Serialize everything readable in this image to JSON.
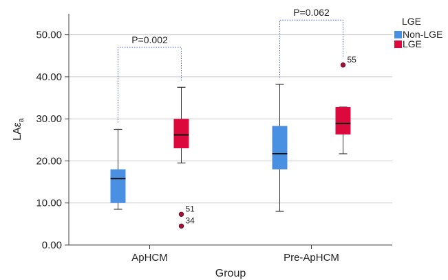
{
  "chart_data": {
    "type": "boxplot",
    "xlabel": "Group",
    "ylabel_main": "LAε",
    "ylabel_sub": "a",
    "ylim": [
      0,
      55
    ],
    "y_ticks": [
      {
        "value": 0,
        "label": "0.00"
      },
      {
        "value": 10,
        "label": "10.00"
      },
      {
        "value": 20,
        "label": "20.00"
      },
      {
        "value": 30,
        "label": "30.00"
      },
      {
        "value": 40,
        "label": "40.00"
      },
      {
        "value": 50,
        "label": "50.00"
      }
    ],
    "grid": true,
    "categories": [
      "ApHCM",
      "Pre-ApHCM"
    ],
    "legend": {
      "title": "LGE",
      "position": "top-right",
      "entries": [
        {
          "name": "Non-LGE",
          "color": "#4a90e2"
        },
        {
          "name": "LGE",
          "color": "#dc0a3c"
        }
      ]
    },
    "boxes": [
      {
        "category": "ApHCM",
        "series": "Non-LGE",
        "min": 8.5,
        "q1": 10.0,
        "median": 15.8,
        "q3": 18.0,
        "max": 27.5,
        "outliers": []
      },
      {
        "category": "ApHCM",
        "series": "LGE",
        "min": 19.5,
        "q1": 23.0,
        "median": 26.2,
        "q3": 30.0,
        "max": 37.5,
        "outliers": [
          {
            "value": 7.3,
            "label": "51"
          },
          {
            "value": 4.5,
            "label": "34"
          }
        ]
      },
      {
        "category": "Pre-ApHCM",
        "series": "Non-LGE",
        "min": 8.0,
        "q1": 18.0,
        "median": 21.7,
        "q3": 28.3,
        "max": 38.2,
        "outliers": []
      },
      {
        "category": "Pre-ApHCM",
        "series": "LGE",
        "min": 21.7,
        "q1": 26.3,
        "median": 28.9,
        "q3": 32.8,
        "max": 32.8,
        "outliers": [
          {
            "value": 42.8,
            "label": "55"
          }
        ]
      }
    ],
    "annotations": [
      {
        "category": "ApHCM",
        "text": "P=0.002",
        "bracket_y": 47.0
      },
      {
        "category": "Pre-ApHCM",
        "text": "P=0.062",
        "bracket_y": 53.5
      }
    ]
  }
}
